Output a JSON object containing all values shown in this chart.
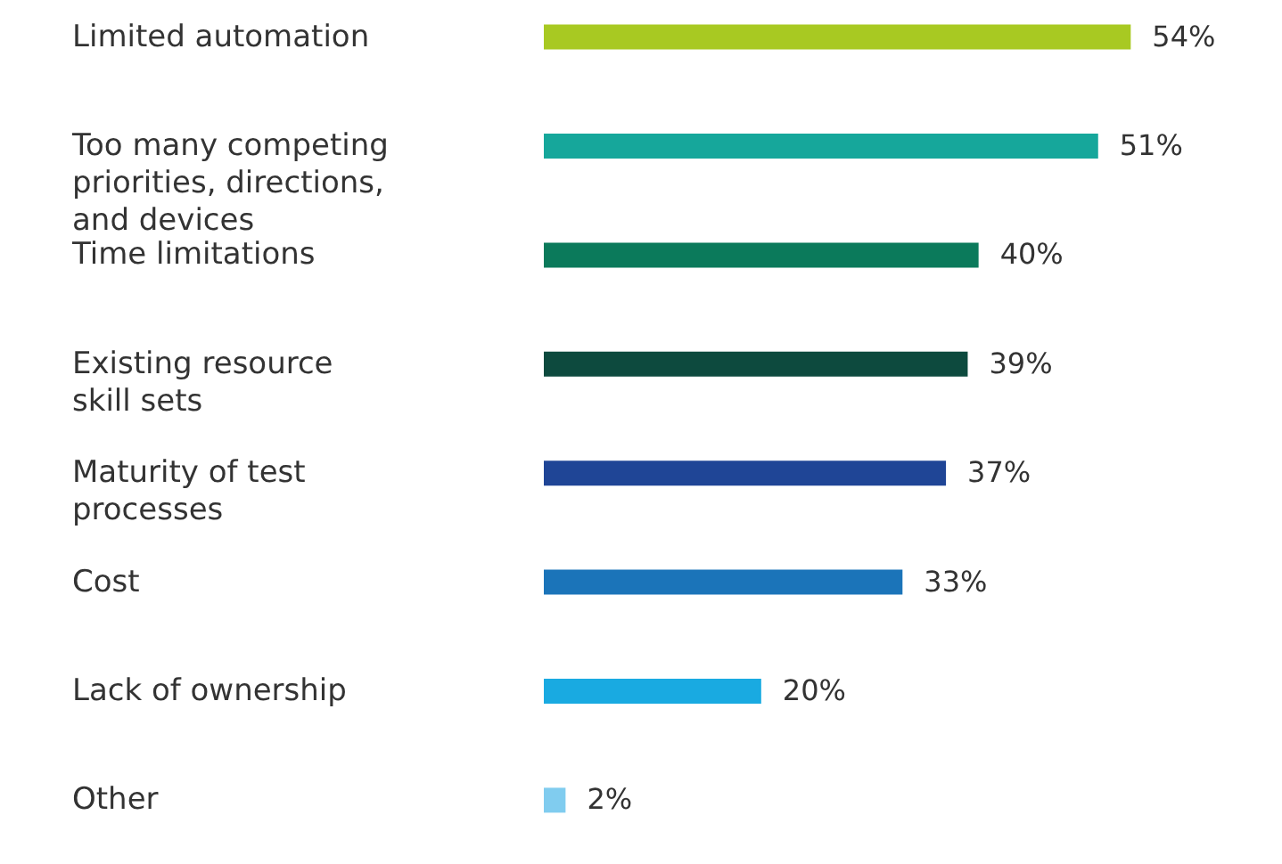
{
  "chart_data": {
    "type": "bar",
    "orientation": "horizontal",
    "categories": [
      "Limited automation",
      "Too many competing\npriorities, directions,\nand devices",
      "Time limitations",
      "Existing resource\nskill sets",
      "Maturity of test\nprocesses",
      "Cost",
      "Lack of ownership",
      "Other"
    ],
    "values": [
      54,
      51,
      40,
      39,
      37,
      33,
      20,
      2
    ],
    "value_labels": [
      "54%",
      "51%",
      "40%",
      "39%",
      "37%",
      "33%",
      "20%",
      "2%"
    ],
    "colors": [
      "#a8c922",
      "#16a79b",
      "#0b7a5b",
      "#0d4a3e",
      "#1f4596",
      "#1b74b9",
      "#19aae1",
      "#80ccef"
    ]
  }
}
